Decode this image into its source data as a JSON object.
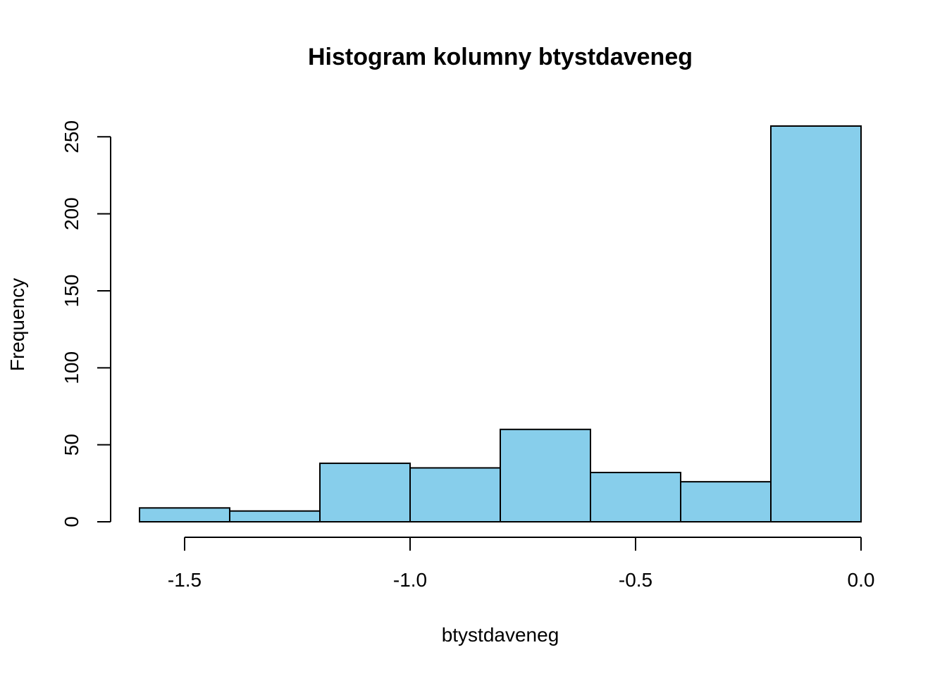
{
  "chart_data": {
    "type": "bar",
    "title": "Histogram kolumny btystdaveneg",
    "xlabel": "btystdaveneg",
    "ylabel": "Frequency",
    "bar_color": "#87CEEB",
    "bins": [
      {
        "from": -1.6,
        "to": -1.4,
        "count": 9
      },
      {
        "from": -1.4,
        "to": -1.2,
        "count": 7
      },
      {
        "from": -1.2,
        "to": -1.0,
        "count": 38
      },
      {
        "from": -1.0,
        "to": -0.8,
        "count": 35
      },
      {
        "from": -0.8,
        "to": -0.6,
        "count": 60
      },
      {
        "from": -0.6,
        "to": -0.4,
        "count": 32
      },
      {
        "from": -0.4,
        "to": -0.2,
        "count": 26
      },
      {
        "from": -0.2,
        "to": 0.0,
        "count": 257
      }
    ],
    "x_ticks": [
      -1.5,
      -1.0,
      -0.5,
      0.0
    ],
    "x_tick_labels": [
      "-1.5",
      "-1.0",
      "-0.5",
      "0.0"
    ],
    "y_ticks": [
      0,
      50,
      100,
      150,
      200,
      250
    ],
    "y_tick_labels": [
      "0",
      "50",
      "100",
      "150",
      "200",
      "250"
    ],
    "xlim": [
      -1.6,
      0.0
    ],
    "ylim": [
      0,
      257
    ],
    "grid": false,
    "legend": "none"
  }
}
